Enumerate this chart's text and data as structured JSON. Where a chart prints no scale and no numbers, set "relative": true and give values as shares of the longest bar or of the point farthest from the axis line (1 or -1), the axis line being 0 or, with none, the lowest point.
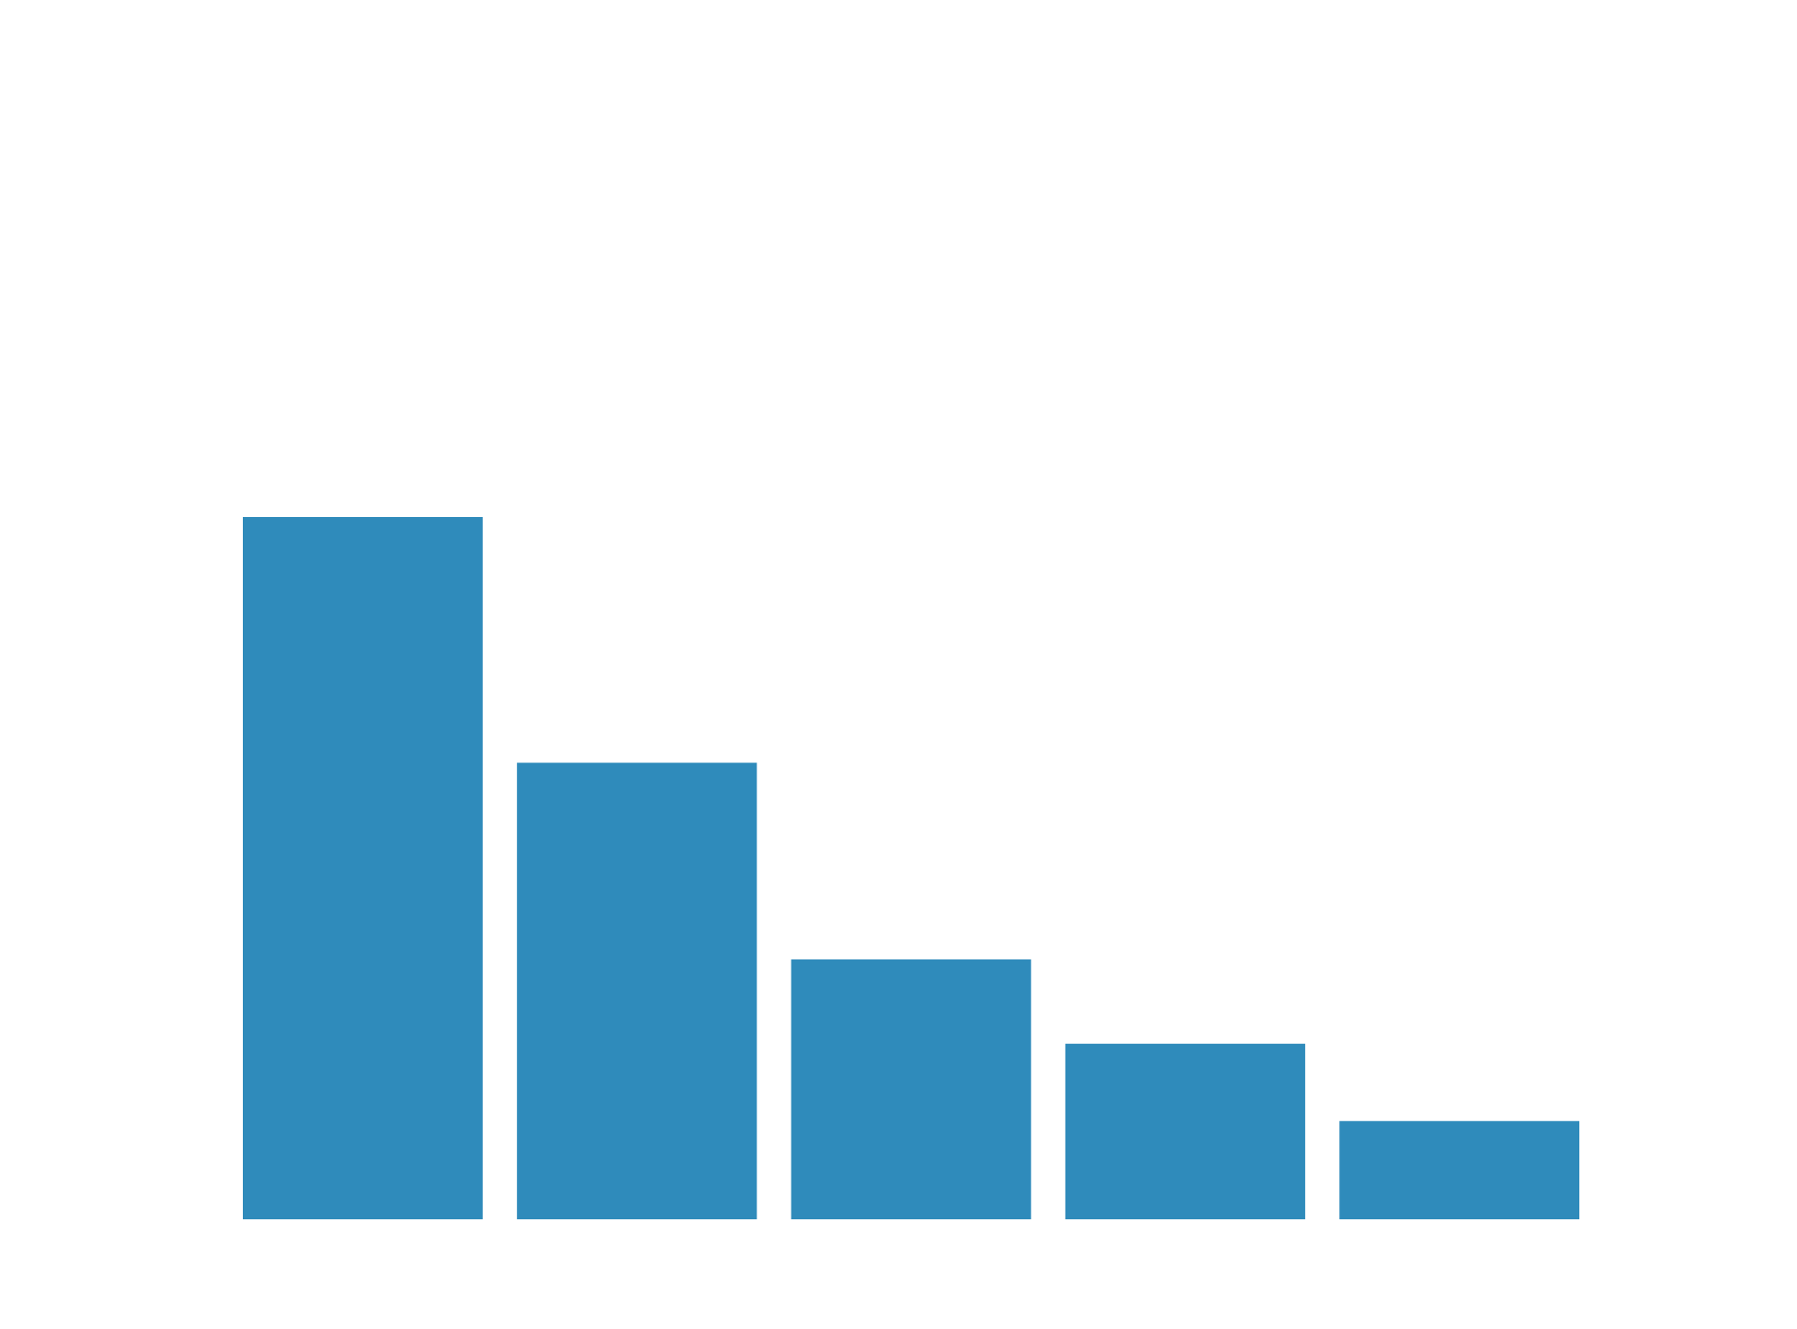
{
  "chart_data": {
    "type": "bar",
    "categories": [
      null,
      null,
      null,
      null,
      null
    ],
    "values": [
      1,
      0.65,
      0.37,
      0.25,
      0.14
    ],
    "color": "#2f8bbb",
    "relative": true,
    "tick_labels": false
  }
}
